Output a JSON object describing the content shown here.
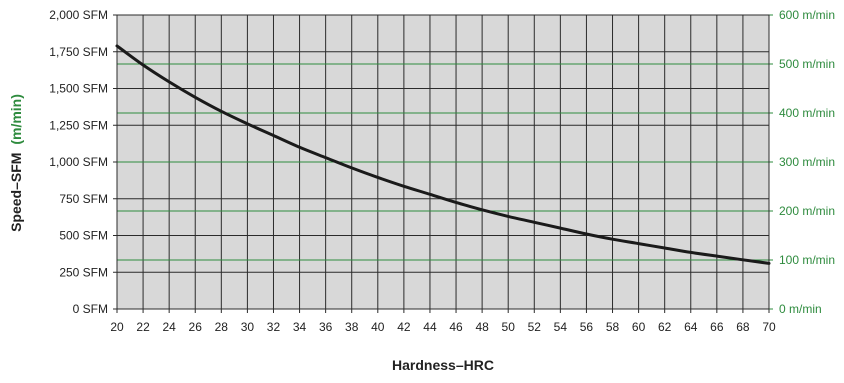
{
  "chart_data": {
    "type": "line",
    "title": "",
    "xlabel": "Hardness–HRC",
    "ylabel": {
      "primary": "Speed–SFM",
      "secondary": "(m/min)"
    },
    "xlim": [
      20,
      70
    ],
    "ylim": [
      0,
      2000
    ],
    "y2lim": [
      0,
      600
    ],
    "grid": true,
    "x_ticks": [
      "20",
      "22",
      "24",
      "26",
      "28",
      "30",
      "32",
      "34",
      "36",
      "38",
      "40",
      "42",
      "44",
      "46",
      "48",
      "50",
      "52",
      "54",
      "56",
      "58",
      "60",
      "62",
      "64",
      "66",
      "68",
      "70"
    ],
    "y_ticks": [
      "0 SFM",
      "250 SFM",
      "500 SFM",
      "750 SFM",
      "1,000 SFM",
      "1,250 SFM",
      "1,500 SFM",
      "1,750 SFM",
      "2,000 SFM"
    ],
    "y2_ticks": [
      "0 m/min",
      "100 m/min",
      "200 m/min",
      "300 m/min",
      "400 m/min",
      "500 m/min",
      "600 m/min"
    ],
    "series": [
      {
        "x": [
          20,
          22,
          24,
          26,
          28,
          30,
          32,
          34,
          36,
          38,
          40,
          42,
          44,
          46,
          48,
          50,
          52,
          54,
          56,
          58,
          60,
          62,
          64,
          66,
          68,
          70
        ],
        "values": [
          1790,
          1660,
          1545,
          1440,
          1345,
          1260,
          1180,
          1100,
          1030,
          960,
          895,
          835,
          780,
          725,
          675,
          630,
          590,
          550,
          510,
          475,
          445,
          415,
          385,
          360,
          335,
          310
        ]
      }
    ],
    "colors": {
      "plot_background": "#d8d8d8",
      "grid_dark": "#2b2b2b",
      "grid_metric": "#2e8b3e",
      "curve": "#1a1a1a",
      "metric_text": "#2e8b3e"
    }
  }
}
